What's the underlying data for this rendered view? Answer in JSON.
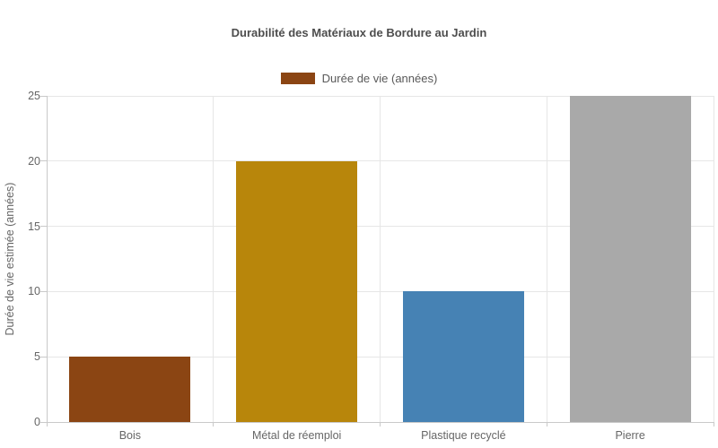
{
  "chart_data": {
    "type": "bar",
    "title": "Durabilité des Matériaux de Bordure au Jardin",
    "series_name": "Durée de vie (années)",
    "categories": [
      "Bois",
      "Métal de réemploi",
      "Plastique recyclé",
      "Pierre"
    ],
    "values": [
      5,
      20,
      10,
      25
    ],
    "bar_colors": [
      "#8B4513",
      "#B8860B",
      "#4682B4",
      "#A9A9A9"
    ],
    "legend_swatch_color": "#8B4513",
    "xlabel": "",
    "ylabel": "Durée de vie estimée (années)",
    "ylim": [
      0,
      25
    ],
    "yticks": [
      0,
      5,
      10,
      15,
      20,
      25
    ],
    "grid": true,
    "legend_position": "top-center",
    "colors": {
      "title_text": "#4d4d4d",
      "axis_text": "#666666",
      "gridline": "#e6e6e6",
      "axis_line": "#c9c9c9",
      "background": "#ffffff"
    }
  }
}
